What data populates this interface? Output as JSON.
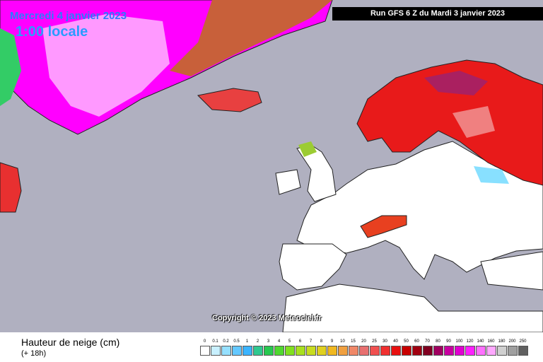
{
  "header": {
    "date": "Mercredi 4 janvier 2023",
    "time": "1:00 locale",
    "run": "Run GFS 6 Z du Mardi 3 janvier 2023"
  },
  "copyright": "Copyright © 2023 Meteociel.fr",
  "legend": {
    "title": "Hauteur de neige (cm)",
    "subtitle": "(+ 18h)",
    "items": [
      {
        "label": "0",
        "color": "#ffffff"
      },
      {
        "label": "0.1",
        "color": "#c8f0ff"
      },
      {
        "label": "0.2",
        "color": "#96e0ff"
      },
      {
        "label": "0.5",
        "color": "#64c8ff"
      },
      {
        "label": "1",
        "color": "#3cb4ff"
      },
      {
        "label": "2",
        "color": "#30c890"
      },
      {
        "label": "3",
        "color": "#28c850"
      },
      {
        "label": "4",
        "color": "#50d830"
      },
      {
        "label": "5",
        "color": "#80e020"
      },
      {
        "label": "6",
        "color": "#a8e020"
      },
      {
        "label": "7",
        "color": "#c8dc20"
      },
      {
        "label": "8",
        "color": "#e0d020"
      },
      {
        "label": "9",
        "color": "#f0b820"
      },
      {
        "label": "10",
        "color": "#f0a040"
      },
      {
        "label": "15",
        "color": "#f08868"
      },
      {
        "label": "20",
        "color": "#e87070"
      },
      {
        "label": "25",
        "color": "#f05050"
      },
      {
        "label": "30",
        "color": "#f03030"
      },
      {
        "label": "40",
        "color": "#e81010"
      },
      {
        "label": "50",
        "color": "#c80000"
      },
      {
        "label": "60",
        "color": "#a00010"
      },
      {
        "label": "70",
        "color": "#800020"
      },
      {
        "label": "80",
        "color": "#a00060"
      },
      {
        "label": "90",
        "color": "#c800a0"
      },
      {
        "label": "100",
        "color": "#e000d0"
      },
      {
        "label": "120",
        "color": "#ff20ff"
      },
      {
        "label": "140",
        "color": "#ff70ff"
      },
      {
        "label": "160",
        "color": "#ffa8ff"
      },
      {
        "label": "180",
        "color": "#d0d0d0"
      },
      {
        "label": "200",
        "color": "#a0a0a0"
      },
      {
        "label": "250",
        "color": "#606060"
      }
    ]
  }
}
